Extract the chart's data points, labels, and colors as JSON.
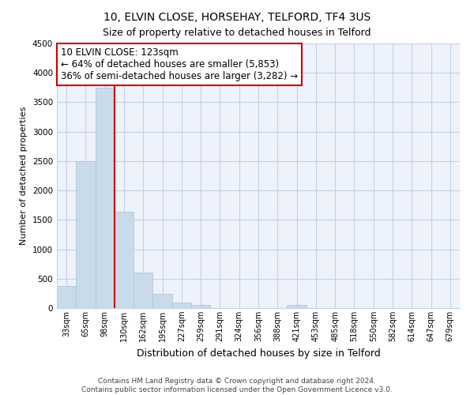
{
  "title": "10, ELVIN CLOSE, HORSEHAY, TELFORD, TF4 3US",
  "subtitle": "Size of property relative to detached houses in Telford",
  "xlabel": "Distribution of detached houses by size in Telford",
  "ylabel": "Number of detached properties",
  "bar_labels": [
    "33sqm",
    "65sqm",
    "98sqm",
    "130sqm",
    "162sqm",
    "195sqm",
    "227sqm",
    "259sqm",
    "291sqm",
    "324sqm",
    "356sqm",
    "388sqm",
    "421sqm",
    "453sqm",
    "485sqm",
    "518sqm",
    "550sqm",
    "582sqm",
    "614sqm",
    "647sqm",
    "679sqm"
  ],
  "bar_values": [
    380,
    2500,
    3750,
    1640,
    600,
    245,
    100,
    60,
    0,
    0,
    0,
    0,
    50,
    0,
    0,
    0,
    0,
    0,
    0,
    0,
    0
  ],
  "bar_color": "#c9daea",
  "bar_edge_color": "#a8c4d8",
  "vline_x": 3,
  "vline_color": "#cc0000",
  "annotation_text_line1": "10 ELVIN CLOSE: 123sqm",
  "annotation_text_line2": "← 64% of detached houses are smaller (5,853)",
  "annotation_text_line3": "36% of semi-detached houses are larger (3,282) →",
  "annotation_box_color": "white",
  "annotation_box_edge": "#cc0000",
  "ylim": [
    0,
    4500
  ],
  "yticks": [
    0,
    500,
    1000,
    1500,
    2000,
    2500,
    3000,
    3500,
    4000,
    4500
  ],
  "footer1": "Contains HM Land Registry data © Crown copyright and database right 2024.",
  "footer2": "Contains public sector information licensed under the Open Government Licence v3.0.",
  "background_color": "#ffffff",
  "plot_background": "#eef2fb",
  "grid_color": "#c8d0e8",
  "title_fontsize": 10,
  "subtitle_fontsize": 9,
  "ylabel_fontsize": 8,
  "xlabel_fontsize": 9,
  "tick_fontsize": 7,
  "annotation_fontsize": 8.5,
  "footer_fontsize": 6.5
}
